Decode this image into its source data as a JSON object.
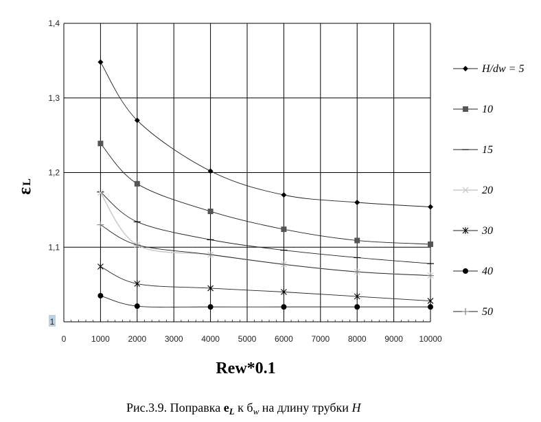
{
  "chart_data": {
    "type": "line",
    "x": [
      1000,
      2000,
      4000,
      6000,
      8000,
      10000
    ],
    "xticks": [
      "0",
      "1000",
      "2000",
      "3000",
      "4000",
      "5000",
      "6000",
      "7000",
      "8000",
      "9000",
      "10000"
    ],
    "yticks": [
      "1",
      "1,1",
      "1,2",
      "1,3",
      "1,4"
    ],
    "xlim": [
      0,
      10000
    ],
    "ylim": [
      1,
      1.4
    ],
    "xlabel": "Rew*0.1",
    "ylabel_main": "ε",
    "ylabel_sub": "L",
    "grid": "major",
    "legend_position": "right",
    "series": [
      {
        "name": "H/dw = 5",
        "marker": "diamond",
        "color": "#000000",
        "values": [
          1.348,
          1.27,
          1.202,
          1.17,
          1.16,
          1.154
        ]
      },
      {
        "name": "10",
        "marker": "square",
        "color": "#555555",
        "values": [
          1.239,
          1.185,
          1.148,
          1.124,
          1.109,
          1.104
        ]
      },
      {
        "name": "15",
        "marker": "dash",
        "color": "#000000",
        "values": [
          1.174,
          1.134,
          1.11,
          1.096,
          1.086,
          1.078
        ]
      },
      {
        "name": "20",
        "marker": "x",
        "color": "#cccccc",
        "values": [
          1.173,
          1.103,
          1.09,
          1.077,
          1.067,
          1.062
        ]
      },
      {
        "name": "30",
        "marker": "star",
        "color": "#000000",
        "values": [
          1.074,
          1.051,
          1.045,
          1.04,
          1.034,
          1.028
        ]
      },
      {
        "name": "40",
        "marker": "circle",
        "color": "#000000",
        "values": [
          1.035,
          1.021,
          1.02,
          1.02,
          1.02,
          1.02
        ]
      },
      {
        "name": "50",
        "marker": "plus",
        "color": "#777777",
        "values": [
          1.13,
          1.103,
          1.09,
          1.077,
          1.067,
          1.062
        ]
      }
    ]
  },
  "caption": {
    "prefix": "Рис.3.9. Поправка ",
    "sym1": "e",
    "sym1_sub": "L",
    "mid": " к б",
    "sym2_sub": "w",
    "suffix": "  на длину трубки ",
    "last": "H"
  }
}
